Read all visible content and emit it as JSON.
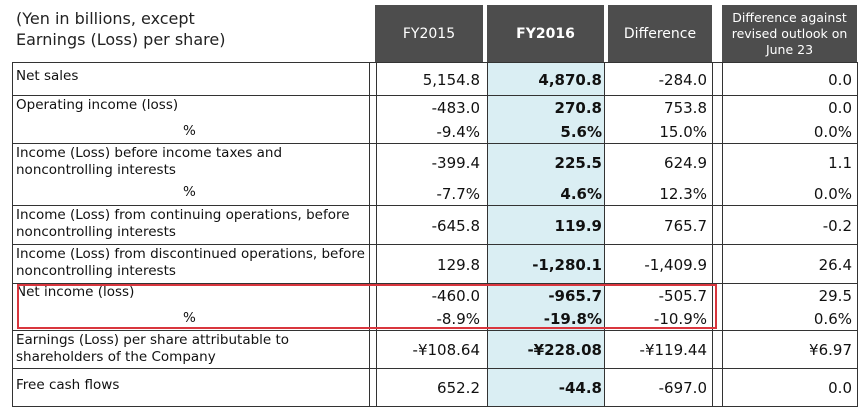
{
  "caption": "(Yen in billions, except\nEarnings (Loss) per share)",
  "headers": {
    "fy2015": "FY2015",
    "fy2016": "FY2016",
    "difference": "Difference",
    "outlook": "Difference against revised outlook on June 23"
  },
  "rows": [
    {
      "label": "Net sales",
      "fy2015": "5,154.8",
      "fy2016": "4,870.8",
      "diff": "-284.0",
      "outlook": "0.0"
    },
    {
      "label": "Operating income (loss)",
      "fy2015": "-483.0",
      "fy2016": "270.8",
      "diff": "753.8",
      "outlook": "0.0"
    },
    {
      "label": "%",
      "fy2015": "-9.4%",
      "fy2016": "5.6%",
      "diff": "15.0%",
      "outlook": "0.0%"
    },
    {
      "label": "Income (Loss) before income taxes and noncontrolling interests",
      "fy2015": "-399.4",
      "fy2016": "225.5",
      "diff": "624.9",
      "outlook": "1.1"
    },
    {
      "label": "%",
      "fy2015": "-7.7%",
      "fy2016": "4.6%",
      "diff": "12.3%",
      "outlook": "0.0%"
    },
    {
      "label": "Income (Loss) from continuing operations, before noncontrolling interests",
      "fy2015": "-645.8",
      "fy2016": "119.9",
      "diff": "765.7",
      "outlook": "-0.2"
    },
    {
      "label": "Income (Loss) from discontinued operations, before noncontrolling interests",
      "fy2015": "129.8",
      "fy2016": "-1,280.1",
      "diff": "-1,409.9",
      "outlook": "26.4"
    },
    {
      "label": "Net income (loss)",
      "fy2015": "-460.0",
      "fy2016": "-965.7",
      "diff": "-505.7",
      "outlook": "29.5"
    },
    {
      "label": "%",
      "fy2015": "-8.9%",
      "fy2016": "-19.8%",
      "diff": "-10.9%",
      "outlook": "0.6%"
    },
    {
      "label": "Earnings (Loss) per share attributable to shareholders of the Company",
      "fy2015": "-¥108.64",
      "fy2016": "-¥228.08",
      "diff": "-¥119.44",
      "outlook": "¥6.97"
    },
    {
      "label": "Free cash flows",
      "fy2015": "652.2",
      "fy2016": "-44.8",
      "diff": "-697.0",
      "outlook": "0.0"
    }
  ],
  "colors": {
    "header_bg": "#4d4d4d",
    "fy2016_bg": "#daeef3",
    "highlight_border": "#d9363e"
  }
}
